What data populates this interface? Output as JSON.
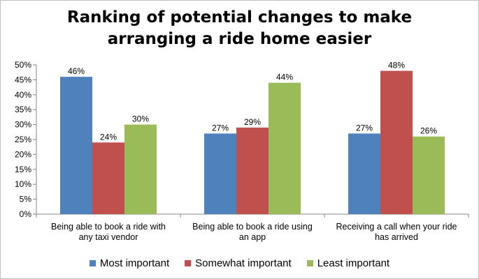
{
  "chart_data": {
    "type": "bar",
    "title": "Ranking of potential changes to make arranging a ride home easier",
    "title_lines": [
      "Ranking of potential changes to make",
      "arranging a ride home easier"
    ],
    "categories": [
      "Being able to book a ride with any taxi vendor",
      "Being able to book a ride using an app",
      "Receiving a call when your ride has arrived"
    ],
    "category_lines": [
      [
        "Being able to book a ride with",
        "any taxi vendor"
      ],
      [
        "Being able to book a ride using",
        "an app"
      ],
      [
        "Receiving a call when your ride",
        "has arrived"
      ]
    ],
    "series": [
      {
        "name": "Most important",
        "values": [
          46,
          27,
          27
        ],
        "labels": [
          "46%",
          "27%",
          "27%"
        ],
        "color": "#4f81bd"
      },
      {
        "name": "Somewhat important",
        "values": [
          24,
          29,
          48
        ],
        "labels": [
          "24%",
          "29%",
          "48%"
        ],
        "color": "#c0504d"
      },
      {
        "name": "Least important",
        "values": [
          30,
          44,
          26
        ],
        "labels": [
          "30%",
          "44%",
          "26%"
        ],
        "color": "#9bbb59"
      }
    ],
    "ylim": [
      0,
      50
    ],
    "yticks": [
      0,
      5,
      10,
      15,
      20,
      25,
      30,
      35,
      40,
      45,
      50
    ],
    "ytick_labels": [
      "0%",
      "5%",
      "10%",
      "15%",
      "20%",
      "25%",
      "30%",
      "35%",
      "40%",
      "45%",
      "50%"
    ],
    "xlabel": "",
    "ylabel": "",
    "grid": false,
    "legend_position": "bottom"
  }
}
